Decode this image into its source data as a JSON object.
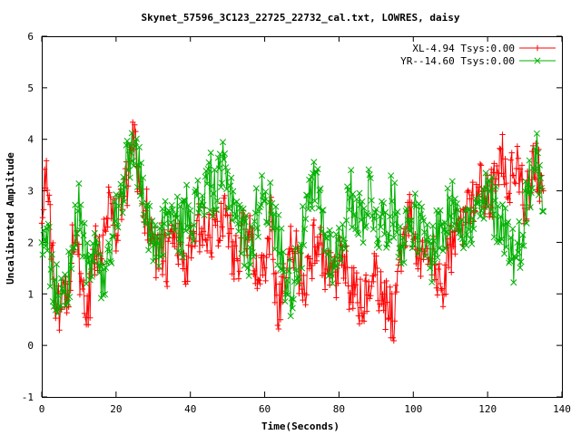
{
  "chart_data": {
    "type": "line",
    "title": "Skynet_57596_3C123_22725_22732_cal.txt, LOWRES, daisy",
    "xlabel": "Time(Seconds)",
    "ylabel": "Uncalibrated Amplitude",
    "xlim": [
      0,
      140
    ],
    "ylim": [
      -1,
      6
    ],
    "xticks": [
      0,
      20,
      40,
      60,
      80,
      100,
      120,
      140
    ],
    "yticks": [
      -1,
      0,
      1,
      2,
      3,
      4,
      5,
      6
    ],
    "grid": false,
    "legend_position": "top-right",
    "series": [
      {
        "name": "XL-4.94 Tsys:0.00",
        "color": "#ff0000",
        "marker": "plus",
        "x": [
          0.0,
          1.0,
          2.0,
          3.0,
          4.0,
          5.0,
          6.0,
          7.0,
          8.0,
          9.0,
          10.0,
          11.0,
          12.0,
          13.0,
          14.0,
          15.0,
          16.0,
          17.0,
          18.0,
          19.0,
          20.0,
          21.0,
          22.0,
          23.0,
          24.0,
          25.0,
          26.0,
          27.0,
          28.0,
          29.0,
          30.0,
          31.0,
          32.0,
          33.0,
          34.0,
          35.0,
          36.0,
          37.0,
          38.0,
          39.0,
          40.0,
          41.0,
          42.0,
          43.0,
          44.0,
          45.0,
          46.0,
          47.0,
          48.0,
          49.0,
          50.0,
          51.0,
          52.0,
          53.0,
          54.0,
          55.0,
          56.0,
          57.0,
          58.0,
          59.0,
          60.0,
          61.0,
          62.0,
          63.0,
          64.0,
          65.0,
          66.0,
          67.0,
          68.0,
          69.0,
          70.0,
          71.0,
          72.0,
          73.0,
          74.0,
          75.0,
          76.0,
          77.0,
          78.0,
          79.0,
          80.0,
          81.0,
          82.0,
          83.0,
          84.0,
          85.0,
          86.0,
          87.0,
          88.0,
          89.0,
          90.0,
          91.0,
          92.0,
          93.0,
          94.0,
          95.0,
          96.0,
          97.0,
          98.0,
          99.0,
          100.0,
          101.0,
          102.0,
          103.0,
          104.0,
          105.0,
          106.0,
          107.0,
          108.0,
          109.0,
          110.0,
          111.0,
          112.0,
          113.0,
          114.0,
          115.0,
          116.0,
          117.0,
          118.0,
          119.0,
          120.0,
          121.0,
          122.0,
          123.0,
          124.0,
          125.0,
          126.0,
          127.0,
          128.0,
          129.0,
          130.0,
          131.0,
          132.0,
          133.0,
          134.0,
          135.0
        ],
        "y": [
          2.6,
          3.5,
          2.4,
          1.6,
          0.8,
          0.5,
          1.2,
          1.0,
          1.8,
          2.4,
          1.5,
          0.8,
          0.5,
          1.0,
          1.6,
          2.0,
          1.8,
          2.6,
          2.9,
          2.5,
          2.2,
          2.7,
          2.8,
          3.1,
          3.7,
          3.9,
          3.3,
          2.8,
          2.6,
          2.4,
          2.3,
          1.7,
          2.0,
          1.7,
          1.5,
          2.0,
          2.2,
          1.9,
          1.7,
          1.4,
          1.8,
          1.9,
          2.2,
          2.3,
          2.1,
          2.0,
          2.3,
          2.4,
          2.2,
          2.7,
          2.4,
          2.0,
          1.7,
          1.8,
          2.1,
          2.2,
          2.0,
          1.8,
          1.6,
          1.3,
          1.5,
          2.2,
          2.4,
          1.0,
          0.7,
          1.1,
          1.4,
          1.8,
          2.0,
          1.6,
          1.3,
          1.2,
          1.6,
          1.9,
          2.1,
          1.8,
          1.6,
          1.4,
          1.3,
          1.2,
          1.5,
          1.7,
          1.4,
          1.1,
          1.0,
          0.9,
          0.8,
          0.9,
          1.1,
          1.2,
          1.3,
          1.0,
          0.9,
          0.7,
          0.6,
          0.5,
          1.8,
          2.0,
          2.3,
          2.5,
          2.2,
          1.9,
          1.7,
          1.5,
          1.6,
          1.8,
          1.4,
          1.1,
          1.2,
          1.5,
          1.8,
          2.0,
          2.2,
          2.4,
          2.6,
          2.7,
          2.9,
          3.1,
          3.3,
          3.0,
          2.8,
          2.9,
          3.2,
          3.5,
          3.6,
          3.4,
          3.1,
          3.3,
          3.5,
          3.2,
          2.8,
          3.0,
          3.4,
          3.6,
          3.2,
          3.0
        ],
        "jitter": 0.55
      },
      {
        "name": "YR--14.60 Tsys:0.00",
        "color": "#00b000",
        "marker": "cross",
        "x": [
          0.0,
          1.0,
          2.0,
          3.0,
          4.0,
          5.0,
          6.0,
          7.0,
          8.0,
          9.0,
          10.0,
          11.0,
          12.0,
          13.0,
          14.0,
          15.0,
          16.0,
          17.0,
          18.0,
          19.0,
          20.0,
          21.0,
          22.0,
          23.0,
          24.0,
          25.0,
          26.0,
          27.0,
          28.0,
          29.0,
          30.0,
          31.0,
          32.0,
          33.0,
          34.0,
          35.0,
          36.0,
          37.0,
          38.0,
          39.0,
          40.0,
          41.0,
          42.0,
          43.0,
          44.0,
          45.0,
          46.0,
          47.0,
          48.0,
          49.0,
          50.0,
          51.0,
          52.0,
          53.0,
          54.0,
          55.0,
          56.0,
          57.0,
          58.0,
          59.0,
          60.0,
          61.0,
          62.0,
          63.0,
          64.0,
          65.0,
          66.0,
          67.0,
          68.0,
          69.0,
          70.0,
          71.0,
          72.0,
          73.0,
          74.0,
          75.0,
          76.0,
          77.0,
          78.0,
          79.0,
          80.0,
          81.0,
          82.0,
          83.0,
          84.0,
          85.0,
          86.0,
          87.0,
          88.0,
          89.0,
          90.0,
          91.0,
          92.0,
          93.0,
          94.0,
          95.0,
          96.0,
          97.0,
          98.0,
          99.0,
          100.0,
          101.0,
          102.0,
          103.0,
          104.0,
          105.0,
          106.0,
          107.0,
          108.0,
          109.0,
          110.0,
          111.0,
          112.0,
          113.0,
          114.0,
          115.0,
          116.0,
          117.0,
          118.0,
          119.0,
          120.0,
          121.0,
          122.0,
          123.0,
          124.0,
          125.0,
          126.0,
          127.0,
          128.0,
          129.0,
          130.0,
          131.0,
          132.0,
          133.0,
          134.0,
          135.0
        ],
        "y": [
          2.0,
          2.3,
          1.8,
          1.4,
          1.0,
          0.8,
          1.4,
          1.2,
          1.6,
          2.2,
          2.6,
          2.0,
          1.6,
          1.5,
          1.7,
          1.8,
          1.2,
          0.9,
          1.4,
          2.0,
          2.4,
          2.8,
          3.2,
          3.4,
          3.8,
          3.9,
          3.5,
          2.9,
          2.6,
          2.3,
          2.2,
          1.9,
          2.1,
          2.3,
          2.6,
          2.5,
          2.2,
          2.4,
          2.3,
          2.6,
          2.8,
          2.5,
          2.7,
          2.9,
          3.0,
          3.2,
          3.1,
          2.9,
          3.2,
          3.4,
          3.1,
          3.0,
          2.8,
          2.4,
          2.2,
          2.0,
          1.9,
          2.1,
          2.6,
          2.9,
          3.1,
          2.8,
          2.4,
          2.2,
          2.0,
          1.6,
          1.3,
          1.1,
          1.4,
          1.7,
          2.0,
          2.4,
          2.7,
          3.0,
          3.1,
          2.7,
          2.2,
          1.9,
          1.8,
          1.7,
          1.9,
          2.2,
          2.5,
          2.8,
          2.9,
          2.6,
          2.4,
          2.7,
          3.0,
          2.8,
          2.5,
          2.3,
          2.4,
          2.5,
          2.7,
          2.6,
          2.3,
          2.1,
          2.2,
          2.4,
          2.5,
          2.3,
          2.2,
          2.0,
          1.9,
          1.8,
          2.1,
          2.3,
          2.2,
          2.4,
          2.6,
          2.8,
          2.7,
          2.5,
          2.4,
          2.2,
          2.3,
          2.5,
          2.6,
          2.7,
          2.9,
          2.8,
          2.6,
          2.5,
          2.4,
          2.2,
          2.0,
          1.8,
          1.6,
          2.2,
          2.6,
          3.0,
          3.4,
          3.8,
          3.2,
          2.6
        ],
        "jitter": 0.6
      }
    ]
  }
}
